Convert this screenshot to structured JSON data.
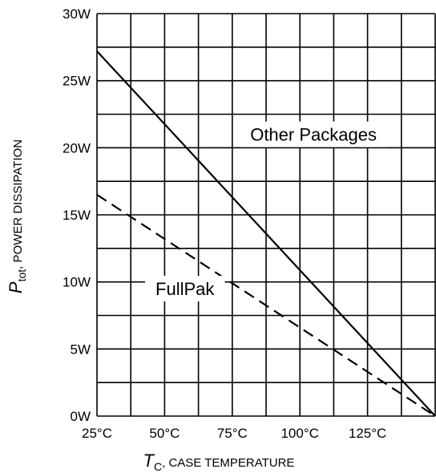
{
  "chart_data": {
    "type": "line",
    "title": "",
    "xlabel": {
      "symbol": "T",
      "subscript": "C",
      "text": ", CASE TEMPERATURE"
    },
    "ylabel": {
      "symbol": "P",
      "subscript": "tot",
      "text": ", POWER DISSIPATION"
    },
    "xlim": [
      25,
      150
    ],
    "ylim": [
      0,
      30
    ],
    "x_ticks": [
      25,
      50,
      75,
      100,
      125
    ],
    "x_tick_labels": [
      "25°C",
      "50°C",
      "75°C",
      "100°C",
      "125°C"
    ],
    "y_ticks": [
      0,
      5,
      10,
      15,
      20,
      25,
      30
    ],
    "y_tick_labels": [
      "0W",
      "5W",
      "10W",
      "15W",
      "20W",
      "25W",
      "30W"
    ],
    "grid": true,
    "grid_step_x": 12.5,
    "grid_step_y": 2.5,
    "series": [
      {
        "x": [
          25,
          150
        ],
        "y": [
          27.2,
          0
        ],
        "style": "solid"
      },
      {
        "x": [
          25,
          150
        ],
        "y": [
          16.5,
          0
        ],
        "style": "dashed"
      }
    ],
    "annotations": [
      {
        "text": "Other Packages",
        "x": 105,
        "y": 21,
        "series_index": 0
      },
      {
        "text": "FullPak",
        "x": 57.5,
        "y": 9.5,
        "series_index": 1
      }
    ],
    "colors": {
      "line": "#000000",
      "grid": "#000000",
      "background": "#ffffff"
    }
  }
}
